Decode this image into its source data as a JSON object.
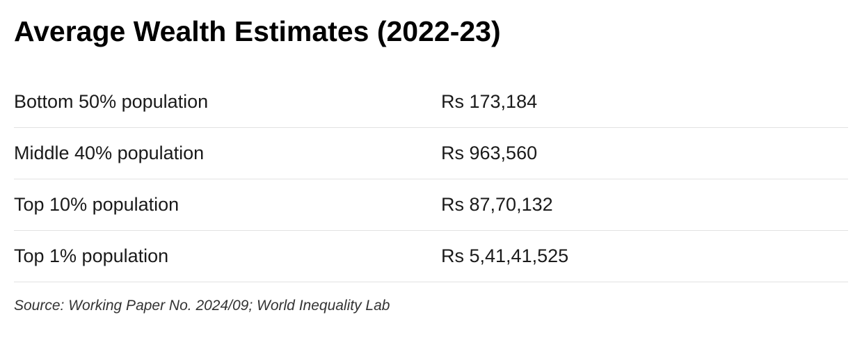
{
  "chart_data": {
    "type": "table",
    "title": "Average Wealth Estimates (2022-23)",
    "rows": [
      {
        "label": "Bottom 50% population",
        "value": "Rs 173,184"
      },
      {
        "label": "Middle 40% population",
        "value": "Rs 963,560"
      },
      {
        "label": "Top 10% population",
        "value": "Rs 87,70,132"
      },
      {
        "label": "Top 1% population",
        "value": "Rs 5,41,41,525"
      }
    ],
    "source": "Source: Working Paper No. 2024/09; World Inequality Lab"
  }
}
